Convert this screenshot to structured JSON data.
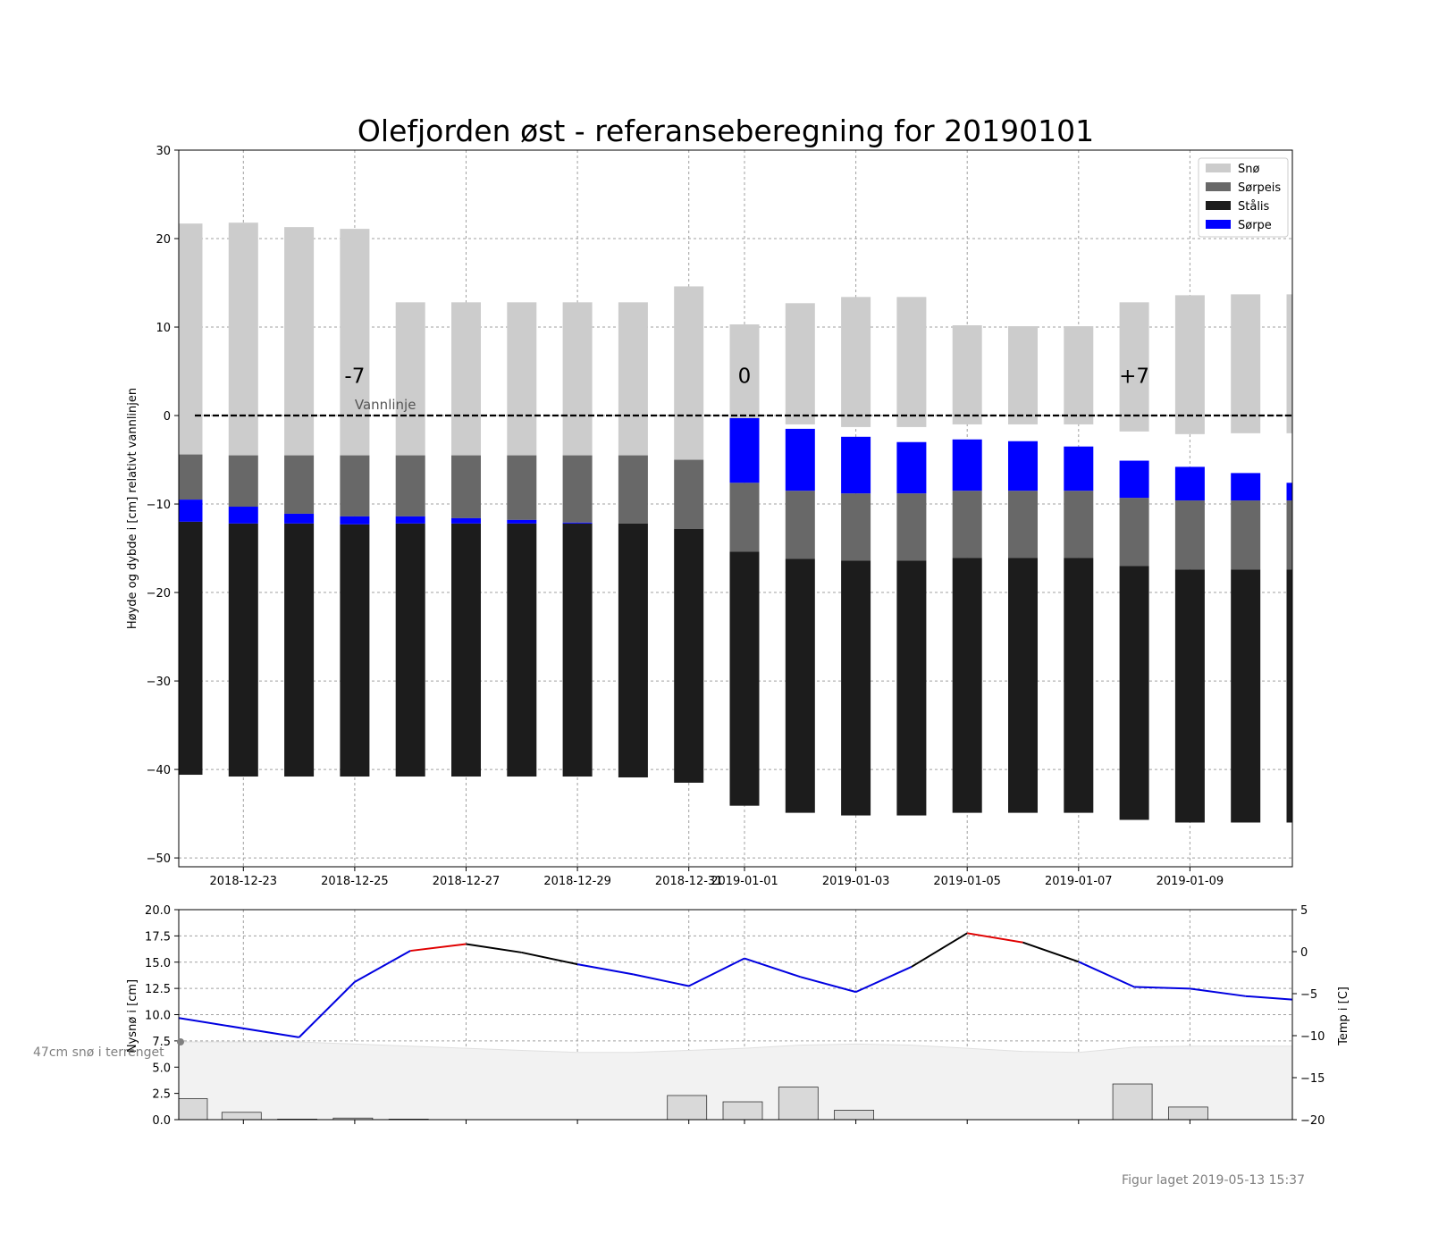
{
  "chart_data": [
    {
      "type": "bar",
      "title": "Olefjorden øst - referanseberegning for 20190101",
      "ylabel": "Høyde og dybde i [cm] relativt vannlinjen",
      "ylim": [
        -51,
        30
      ],
      "yticks": [
        30,
        20,
        10,
        0,
        -10,
        -20,
        -30,
        -40,
        -50
      ],
      "xticks": [
        "2018-12-23",
        "2018-12-25",
        "2018-12-27",
        "2018-12-29",
        "2018-12-31",
        "2019-01-01",
        "2019-01-03",
        "2019-01-05",
        "2019-01-07",
        "2019-01-09"
      ],
      "dates": [
        "2018-12-22",
        "2018-12-23",
        "2018-12-24",
        "2018-12-25",
        "2018-12-26",
        "2018-12-27",
        "2018-12-28",
        "2018-12-29",
        "2018-12-30",
        "2018-12-31",
        "2019-01-01",
        "2019-01-02",
        "2019-01-03",
        "2019-01-04",
        "2019-01-05",
        "2019-01-06",
        "2019-01-07",
        "2019-01-08",
        "2019-01-09",
        "2019-01-10",
        "2019-01-11"
      ],
      "series": [
        {
          "name": "Snø",
          "color": "#cccccc",
          "bottom": [
            -4.4,
            -4.5,
            -4.5,
            -4.5,
            -4.5,
            -4.5,
            -4.5,
            -4.5,
            -4.5,
            -5.0,
            -0.3,
            -1.0,
            -1.3,
            -1.3,
            -1.0,
            -1.0,
            -1.0,
            -1.8,
            -2.1,
            -2.0,
            -2.0
          ],
          "top": [
            21.7,
            21.8,
            21.3,
            21.1,
            12.8,
            12.8,
            12.8,
            12.8,
            12.8,
            14.6,
            10.3,
            12.7,
            13.4,
            13.4,
            10.2,
            10.1,
            10.1,
            12.8,
            13.6,
            13.7,
            13.7
          ]
        },
        {
          "name": "Sørpeis",
          "color": "#686868",
          "bottom": [
            -9.5,
            -10.3,
            -11.1,
            -11.4,
            -11.4,
            -11.6,
            -11.8,
            -12.1,
            -12.2,
            -12.8,
            -7.6,
            -8.5,
            -8.8,
            -8.8,
            -8.5,
            -8.5,
            -8.5,
            -9.3,
            -9.6,
            -9.6,
            -9.6
          ],
          "top": [
            -4.4,
            -4.5,
            -4.5,
            -4.5,
            -4.5,
            -4.5,
            -4.5,
            -4.5,
            -4.5,
            -5.0,
            -15.4,
            -16.2,
            -16.4,
            -16.4,
            -16.1,
            -16.1,
            -16.1,
            -17.0,
            -17.4,
            -17.4,
            -17.4
          ]
        },
        {
          "name": "Stålis",
          "color": "#1c1c1c",
          "bottom": [
            -40.6,
            -40.8,
            -40.8,
            -40.8,
            -40.8,
            -40.8,
            -40.8,
            -40.8,
            -40.9,
            -41.5,
            -44.1,
            -44.9,
            -45.2,
            -45.2,
            -44.9,
            -44.9,
            -44.9,
            -45.7,
            -46.0,
            -46.0,
            -46.0
          ],
          "top": [
            -12.0,
            -12.2,
            -12.2,
            -12.3,
            -12.2,
            -12.2,
            -12.2,
            -12.2,
            -12.2,
            -12.8,
            -15.4,
            -16.2,
            -16.4,
            -16.4,
            -16.1,
            -16.1,
            -16.1,
            -17.0,
            -17.4,
            -17.4,
            -17.4
          ]
        },
        {
          "name": "Sørpe",
          "color": "#0000ff",
          "bottom": [
            -12.0,
            -12.2,
            -12.2,
            -12.3,
            -12.2,
            -12.2,
            -12.2,
            -12.2,
            -12.2,
            -12.8,
            -7.6,
            -8.5,
            -8.8,
            -8.8,
            -8.5,
            -8.5,
            -8.5,
            -9.3,
            -9.6,
            -9.6,
            -9.6
          ],
          "top": [
            -9.5,
            -10.3,
            -11.1,
            -11.4,
            -11.4,
            -11.6,
            -11.8,
            -12.1,
            -12.2,
            -12.8,
            -0.3,
            -1.5,
            -2.4,
            -3.0,
            -2.7,
            -2.9,
            -3.5,
            -5.1,
            -5.8,
            -6.5,
            -7.6
          ]
        }
      ],
      "annotations": [
        {
          "text": "-7",
          "date": "2018-12-25",
          "y": 4.5
        },
        {
          "text": "0",
          "date": "2019-01-01",
          "y": 4.5
        },
        {
          "text": "+7",
          "date": "2019-01-08",
          "y": 4.5
        },
        {
          "text": "Vannlinje",
          "date": "2018-12-25",
          "y": 1.5
        }
      ],
      "waterline": 0,
      "legend": "top-right",
      "grid": true
    },
    {
      "type": "bar",
      "ylabel": "Nysnø i [cm]",
      "ylabel2": "Temp i [C]",
      "ylim": [
        0,
        20
      ],
      "ylim2": [
        -20,
        5
      ],
      "yticks": [
        "0.0",
        "2.5",
        "5.0",
        "7.5",
        "10.0",
        "12.5",
        "15.0",
        "17.5",
        "20.0"
      ],
      "yticks2": [
        "5",
        "0",
        "−5",
        "−10",
        "−15",
        "−20"
      ],
      "yticks2_values": [
        5,
        0,
        -5,
        -10,
        -15,
        -20
      ],
      "snow_dates": [
        "2018-12-22",
        "2018-12-23",
        "2018-12-24",
        "2018-12-25",
        "2018-12-26",
        "2018-12-31",
        "2019-01-01",
        "2019-01-02",
        "2019-01-03",
        "2019-01-08",
        "2019-01-09"
      ],
      "new_snow": [
        2.0,
        0.7,
        0.05,
        0.15,
        0.05,
        2.3,
        1.7,
        3.1,
        0.9,
        3.4,
        1.2
      ],
      "terrain_dates": [
        "2018-12-22",
        "2018-12-24",
        "2018-12-26",
        "2018-12-27",
        "2018-12-28",
        "2018-12-29",
        "2018-12-30",
        "2018-12-31",
        "2019-01-01",
        "2019-01-02",
        "2019-01-03",
        "2019-01-04",
        "2019-01-05",
        "2019-01-06",
        "2019-01-07",
        "2019-01-08",
        "2019-01-09",
        "2019-01-10",
        "2019-01-11"
      ],
      "terrain_snow": [
        7.4,
        7.4,
        7.0,
        6.8,
        6.6,
        6.4,
        6.4,
        6.6,
        6.8,
        7.1,
        7.2,
        7.1,
        6.8,
        6.5,
        6.4,
        6.9,
        7.0,
        7.0,
        7.0
      ],
      "temp_dates": [
        "2018-12-22",
        "2018-12-24",
        "2018-12-25",
        "2018-12-26",
        "2018-12-27",
        "2018-12-28",
        "2018-12-29",
        "2018-12-30",
        "2018-12-31",
        "2019-01-01",
        "2019-01-02",
        "2019-01-03",
        "2019-01-04",
        "2019-01-05",
        "2019-01-06",
        "2019-01-07",
        "2019-01-08",
        "2019-01-09",
        "2019-01-10",
        "2019-01-11"
      ],
      "temperature": [
        -7.9,
        -10.2,
        -3.6,
        0.1,
        0.9,
        -0.1,
        -1.5,
        -2.7,
        -4.1,
        -0.8,
        -3.0,
        -4.8,
        -1.8,
        2.2,
        1.1,
        -1.2,
        -4.2,
        -4.4,
        -5.3,
        -5.7
      ],
      "note": "47cm snø i terrenget"
    }
  ],
  "footer": "Figur laget 2019-05-13 15:37"
}
